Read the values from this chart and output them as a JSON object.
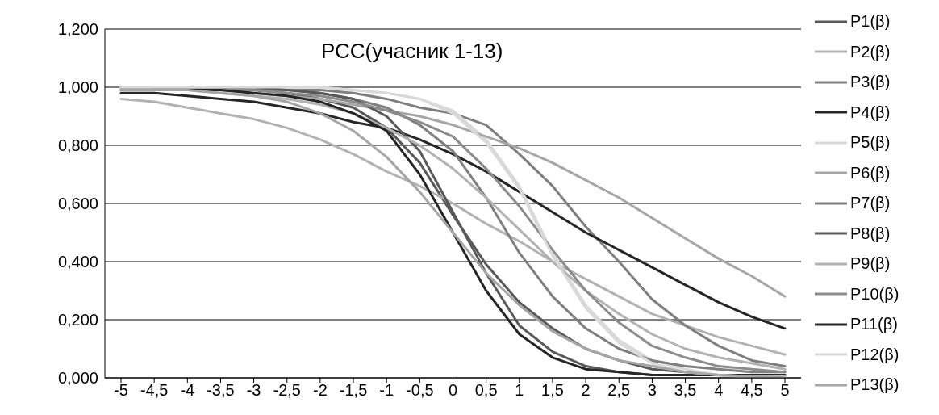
{
  "chart_data": {
    "type": "line",
    "title": "РСС(учасник 1-13)",
    "categories": [
      "-5",
      "-4,5",
      "-4",
      "-3,5",
      "-3",
      "-2,5",
      "-2",
      "-1,5",
      "-1",
      "-0,5",
      "0",
      "0,5",
      "1",
      "1,5",
      "2",
      "2,5",
      "3",
      "3,5",
      "4",
      "4,5",
      "5"
    ],
    "ylim": [
      0,
      1.2
    ],
    "yticks": [
      {
        "value": 0,
        "label": "0,000"
      },
      {
        "value": 0.2,
        "label": "0,200"
      },
      {
        "value": 0.4,
        "label": "0,400"
      },
      {
        "value": 0.6,
        "label": "0,600"
      },
      {
        "value": 0.8,
        "label": "0,800"
      },
      {
        "value": 1,
        "label": "1,000"
      },
      {
        "value": 1.2,
        "label": "1,200"
      }
    ],
    "grid": "y",
    "legend": "right",
    "marker": "none",
    "line_style": "solid",
    "series": [
      {
        "name": "P1(β)",
        "color": "#595959",
        "values": [
          1,
          1,
          1,
          1,
          0.99,
          0.98,
          0.96,
          0.93,
          0.86,
          0.74,
          0.56,
          0.39,
          0.26,
          0.17,
          0.1,
          0.06,
          0.03,
          0.02,
          0.01,
          0,
          0
        ]
      },
      {
        "name": "P2(β)",
        "color": "#b2b2b2",
        "values": [
          0.96,
          0.95,
          0.93,
          0.91,
          0.89,
          0.86,
          0.82,
          0.77,
          0.71,
          0.66,
          0.6,
          0.53,
          0.47,
          0.4,
          0.34,
          0.28,
          0.22,
          0.18,
          0.14,
          0.11,
          0.08
        ]
      },
      {
        "name": "P3(β)",
        "color": "#7f7f7f",
        "values": [
          1,
          1,
          1,
          1,
          1,
          0.99,
          0.99,
          0.98,
          0.96,
          0.93,
          0.91,
          0.87,
          0.77,
          0.66,
          0.52,
          0.4,
          0.27,
          0.18,
          0.11,
          0.06,
          0.04
        ]
      },
      {
        "name": "P4(β)",
        "color": "#262626",
        "values": [
          0.98,
          0.98,
          0.97,
          0.96,
          0.95,
          0.93,
          0.91,
          0.88,
          0.86,
          0.82,
          0.77,
          0.71,
          0.64,
          0.57,
          0.5,
          0.44,
          0.38,
          0.32,
          0.26,
          0.21,
          0.17
        ]
      },
      {
        "name": "P5(β)",
        "color": "#d9d9d9",
        "values": [
          0.99,
          1,
          1,
          1,
          1,
          1,
          1,
          0.99,
          0.98,
          0.96,
          0.92,
          0.82,
          0.66,
          0.43,
          0.25,
          0.13,
          0.06,
          0.03,
          0.01,
          0,
          0
        ]
      },
      {
        "name": "P6(β)",
        "color": "#a6a6a6",
        "values": [
          1,
          0.99,
          0.99,
          0.99,
          0.98,
          0.97,
          0.96,
          0.94,
          0.92,
          0.9,
          0.87,
          0.83,
          0.79,
          0.74,
          0.68,
          0.62,
          0.55,
          0.48,
          0.41,
          0.35,
          0.28
        ]
      },
      {
        "name": "P7(β)",
        "color": "#7f7f7f",
        "values": [
          1,
          1,
          1,
          1,
          0.99,
          0.99,
          0.98,
          0.96,
          0.93,
          0.87,
          0.78,
          0.62,
          0.43,
          0.28,
          0.17,
          0.1,
          0.06,
          0.04,
          0.03,
          0.02,
          0.02
        ]
      },
      {
        "name": "P8(β)",
        "color": "#595959",
        "values": [
          1,
          1,
          1,
          1,
          1,
          0.99,
          0.98,
          0.96,
          0.9,
          0.78,
          0.57,
          0.36,
          0.18,
          0.09,
          0.04,
          0.02,
          0.01,
          0.01,
          0.01,
          0.01,
          0.01
        ]
      },
      {
        "name": "P9(β)",
        "color": "#b2b2b2",
        "values": [
          1,
          0.99,
          0.99,
          0.98,
          0.97,
          0.96,
          0.94,
          0.91,
          0.86,
          0.8,
          0.72,
          0.62,
          0.51,
          0.4,
          0.3,
          0.22,
          0.15,
          0.1,
          0.07,
          0.05,
          0.03
        ]
      },
      {
        "name": "P10(β)",
        "color": "#8c8c8c",
        "values": [
          0.99,
          1,
          1,
          0.99,
          0.99,
          0.98,
          0.97,
          0.95,
          0.92,
          0.88,
          0.83,
          0.72,
          0.59,
          0.44,
          0.3,
          0.19,
          0.11,
          0.07,
          0.04,
          0.03,
          0.02
        ]
      },
      {
        "name": "P11(β)",
        "color": "#262626",
        "values": [
          0.99,
          0.99,
          0.99,
          0.99,
          0.98,
          0.97,
          0.95,
          0.91,
          0.85,
          0.7,
          0.5,
          0.3,
          0.15,
          0.07,
          0.03,
          0.02,
          0.01,
          0.01,
          0.01,
          0.01,
          0.01
        ]
      },
      {
        "name": "P12(β)",
        "color": "#d9d9d9",
        "values": [
          1,
          1,
          1,
          1,
          1,
          1,
          1,
          0.99,
          0.98,
          0.96,
          0.91,
          0.81,
          0.65,
          0.42,
          0.24,
          0.12,
          0.05,
          0.02,
          0.01,
          0.005,
          0.004
        ]
      },
      {
        "name": "P13(β)",
        "color": "#a6a6a6",
        "values": [
          0.99,
          0.99,
          0.99,
          0.98,
          0.97,
          0.95,
          0.91,
          0.85,
          0.76,
          0.64,
          0.5,
          0.36,
          0.25,
          0.16,
          0.1,
          0.06,
          0.04,
          0.02,
          0.01,
          0.005,
          0.003
        ]
      }
    ]
  }
}
